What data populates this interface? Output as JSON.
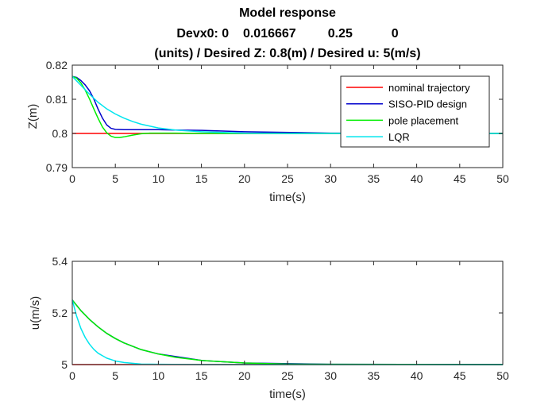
{
  "figure": {
    "title_lines": [
      "Model response",
      "Devx0: 0    0.016667         0.25           0",
      "(units) / Desired Z: 0.8(m) / Desired u: 5(m/s)"
    ]
  },
  "chart_data": [
    {
      "type": "line",
      "xlabel": "time(s)",
      "ylabel": "Z(m)",
      "xlim": [
        0,
        50
      ],
      "ylim": [
        0.79,
        0.82
      ],
      "xticks": [
        0,
        5,
        10,
        15,
        20,
        25,
        30,
        35,
        40,
        45,
        50
      ],
      "yticks": [
        0.79,
        0.8,
        0.81,
        0.82
      ],
      "ytick_labels": [
        "0.79",
        "0.8",
        "0.81",
        "0.82"
      ],
      "grid": false,
      "legend": "top-right",
      "series": [
        {
          "name": "nominal trajectory",
          "color": "#ff0000",
          "x": [
            0,
            50
          ],
          "y": [
            0.8,
            0.8
          ]
        },
        {
          "name": "SISO-PID design",
          "color": "#0000cc",
          "x": [
            0,
            0.5,
            1,
            1.5,
            2,
            2.5,
            3,
            3.5,
            4,
            4.5,
            5,
            6,
            7,
            8,
            10,
            12,
            15,
            20,
            30,
            50
          ],
          "y": [
            0.8167,
            0.8164,
            0.8155,
            0.8142,
            0.8125,
            0.8101,
            0.8071,
            0.8045,
            0.8025,
            0.8015,
            0.8012,
            0.8011,
            0.8011,
            0.8011,
            0.8011,
            0.801,
            0.8009,
            0.8005,
            0.8001,
            0.8
          ]
        },
        {
          "name": "pole placement",
          "color": "#00ee00",
          "x": [
            0,
            0.5,
            1,
            1.5,
            2,
            2.5,
            3,
            3.5,
            4,
            4.5,
            5,
            5.5,
            6,
            7,
            8,
            9,
            10,
            12,
            15,
            20,
            50
          ],
          "y": [
            0.8167,
            0.8162,
            0.8148,
            0.8127,
            0.8101,
            0.8072,
            0.8044,
            0.8019,
            0.8002,
            0.7992,
            0.7988,
            0.7988,
            0.799,
            0.7995,
            0.7999,
            0.8001,
            0.8001,
            0.8001,
            0.8,
            0.8,
            0.8
          ]
        },
        {
          "name": "LQR",
          "color": "#00e5ee",
          "x": [
            0,
            1,
            2,
            3,
            4,
            5,
            6,
            7,
            8,
            10,
            12,
            15,
            20,
            25,
            30,
            50
          ],
          "y": [
            0.8167,
            0.8141,
            0.8115,
            0.8091,
            0.8072,
            0.8057,
            0.8045,
            0.8035,
            0.8027,
            0.8016,
            0.801,
            0.8005,
            0.8001,
            0.8,
            0.8,
            0.8
          ]
        }
      ]
    },
    {
      "type": "line",
      "xlabel": "time(s)",
      "ylabel": "u(m/s)",
      "xlim": [
        0,
        50
      ],
      "ylim": [
        5,
        5.4
      ],
      "xticks": [
        0,
        5,
        10,
        15,
        20,
        25,
        30,
        35,
        40,
        45,
        50
      ],
      "yticks": [
        5,
        5.2,
        5.4
      ],
      "ytick_labels": [
        "5",
        "5.2",
        "5.4"
      ],
      "grid": false,
      "series": [
        {
          "name": "nominal trajectory",
          "color": "#ff0000",
          "x": [
            0,
            50
          ],
          "y": [
            5.0,
            5.0
          ]
        },
        {
          "name": "SISO-PID design",
          "color": "#0000cc",
          "x": [
            0,
            1,
            2,
            3,
            4,
            5,
            6,
            8,
            10,
            15,
            20,
            30,
            50
          ],
          "y": [
            5.25,
            5.209,
            5.175,
            5.146,
            5.121,
            5.101,
            5.084,
            5.058,
            5.041,
            5.016,
            5.006,
            5.001,
            5.0
          ]
        },
        {
          "name": "pole placement",
          "color": "#00ee00",
          "x": [
            0,
            1,
            2,
            3,
            4,
            5,
            6,
            8,
            10,
            12,
            15,
            20,
            25,
            30,
            50
          ],
          "y": [
            5.25,
            5.209,
            5.175,
            5.146,
            5.121,
            5.101,
            5.084,
            5.058,
            5.041,
            5.028,
            5.016,
            5.006,
            5.002,
            5.001,
            5.0
          ]
        },
        {
          "name": "LQR",
          "color": "#00e5ee",
          "x": [
            0,
            0.5,
            1,
            1.5,
            2,
            2.5,
            3,
            4,
            5,
            6,
            8,
            10,
            15,
            50
          ],
          "y": [
            5.25,
            5.188,
            5.14,
            5.105,
            5.079,
            5.059,
            5.044,
            5.025,
            5.014,
            5.008,
            5.002,
            5.001,
            5.0,
            5.0
          ]
        }
      ]
    }
  ]
}
